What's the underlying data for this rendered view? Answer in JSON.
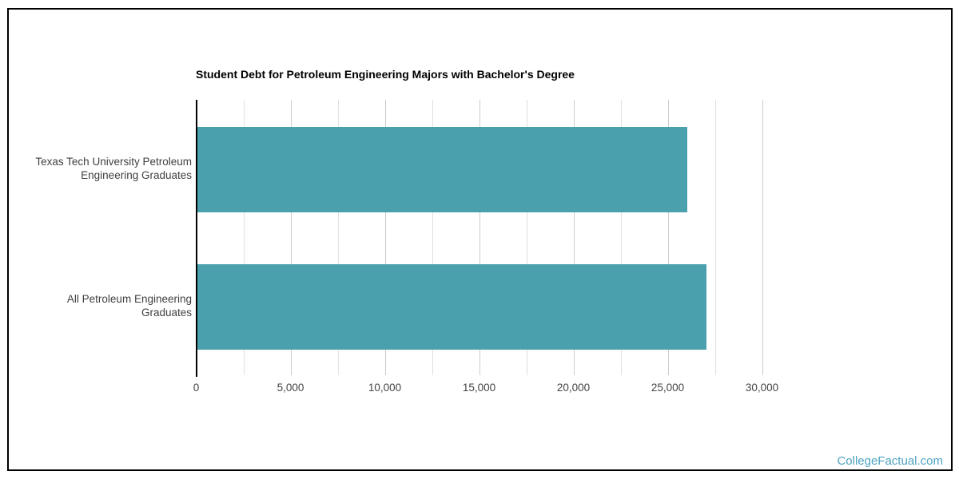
{
  "watermark": {
    "text": "CollegeFactual.com",
    "color": "#4EA3C0"
  },
  "frame": {
    "border_color": "#000000"
  },
  "chart_data": {
    "type": "bar",
    "orientation": "horizontal",
    "title": "Student Debt for Petroleum Engineering Majors with Bachelor's Degree",
    "categories": [
      {
        "label": "Texas Tech University Petroleum Engineering Graduates",
        "lines": [
          "Texas Tech University Petroleum",
          "Engineering Graduates"
        ]
      },
      {
        "label": "All Petroleum Engineering Graduates",
        "lines": [
          "All Petroleum Engineering",
          "Graduates"
        ]
      }
    ],
    "values": [
      26000,
      27000
    ],
    "xlabel": "",
    "ylabel": "",
    "xlim": [
      0,
      30000
    ],
    "x_ticks": [
      {
        "value": 0,
        "label": "0"
      },
      {
        "value": 5000,
        "label": "5,000"
      },
      {
        "value": 10000,
        "label": "10,000"
      },
      {
        "value": 15000,
        "label": "15,000"
      },
      {
        "value": 20000,
        "label": "20,000"
      },
      {
        "value": 25000,
        "label": "25,000"
      },
      {
        "value": 30000,
        "label": "30,000"
      }
    ],
    "minor_grid_step": 2500,
    "grid": true,
    "legend": "none",
    "bar_color": "#4AA0AD",
    "grid_major_color": "#CCCCCC",
    "grid_minor_color": "#E0E0E0",
    "axis_line_color": "#000000",
    "tick_label_color": "#444444",
    "category_label_color": "#404040"
  }
}
